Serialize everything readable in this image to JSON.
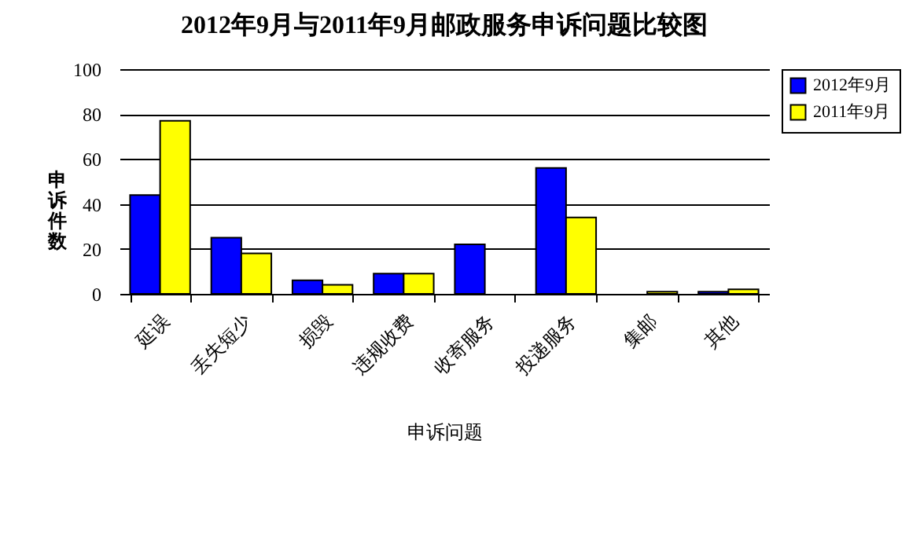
{
  "chart_data": {
    "type": "bar",
    "title": "2012年9月与2011年9月邮政服务申诉问题比较图",
    "xlabel": "申诉问题",
    "ylabel": "申诉件数",
    "categories": [
      "延误",
      "丢失短少",
      "损毁",
      "违规收费",
      "收寄服务",
      "投递服务",
      "集邮",
      "其他"
    ],
    "series": [
      {
        "name": "2012年9月",
        "color": "#0000ff",
        "values": [
          44,
          25,
          6,
          9,
          22,
          56,
          null,
          1
        ]
      },
      {
        "name": "2011年9月",
        "color": "#ffff00",
        "values": [
          77,
          18,
          4,
          9,
          null,
          34,
          1,
          2
        ]
      }
    ],
    "ylim": [
      0,
      100
    ],
    "yticks": [
      0,
      20,
      40,
      60,
      80,
      100
    ],
    "grid": "y",
    "legend": "right"
  }
}
